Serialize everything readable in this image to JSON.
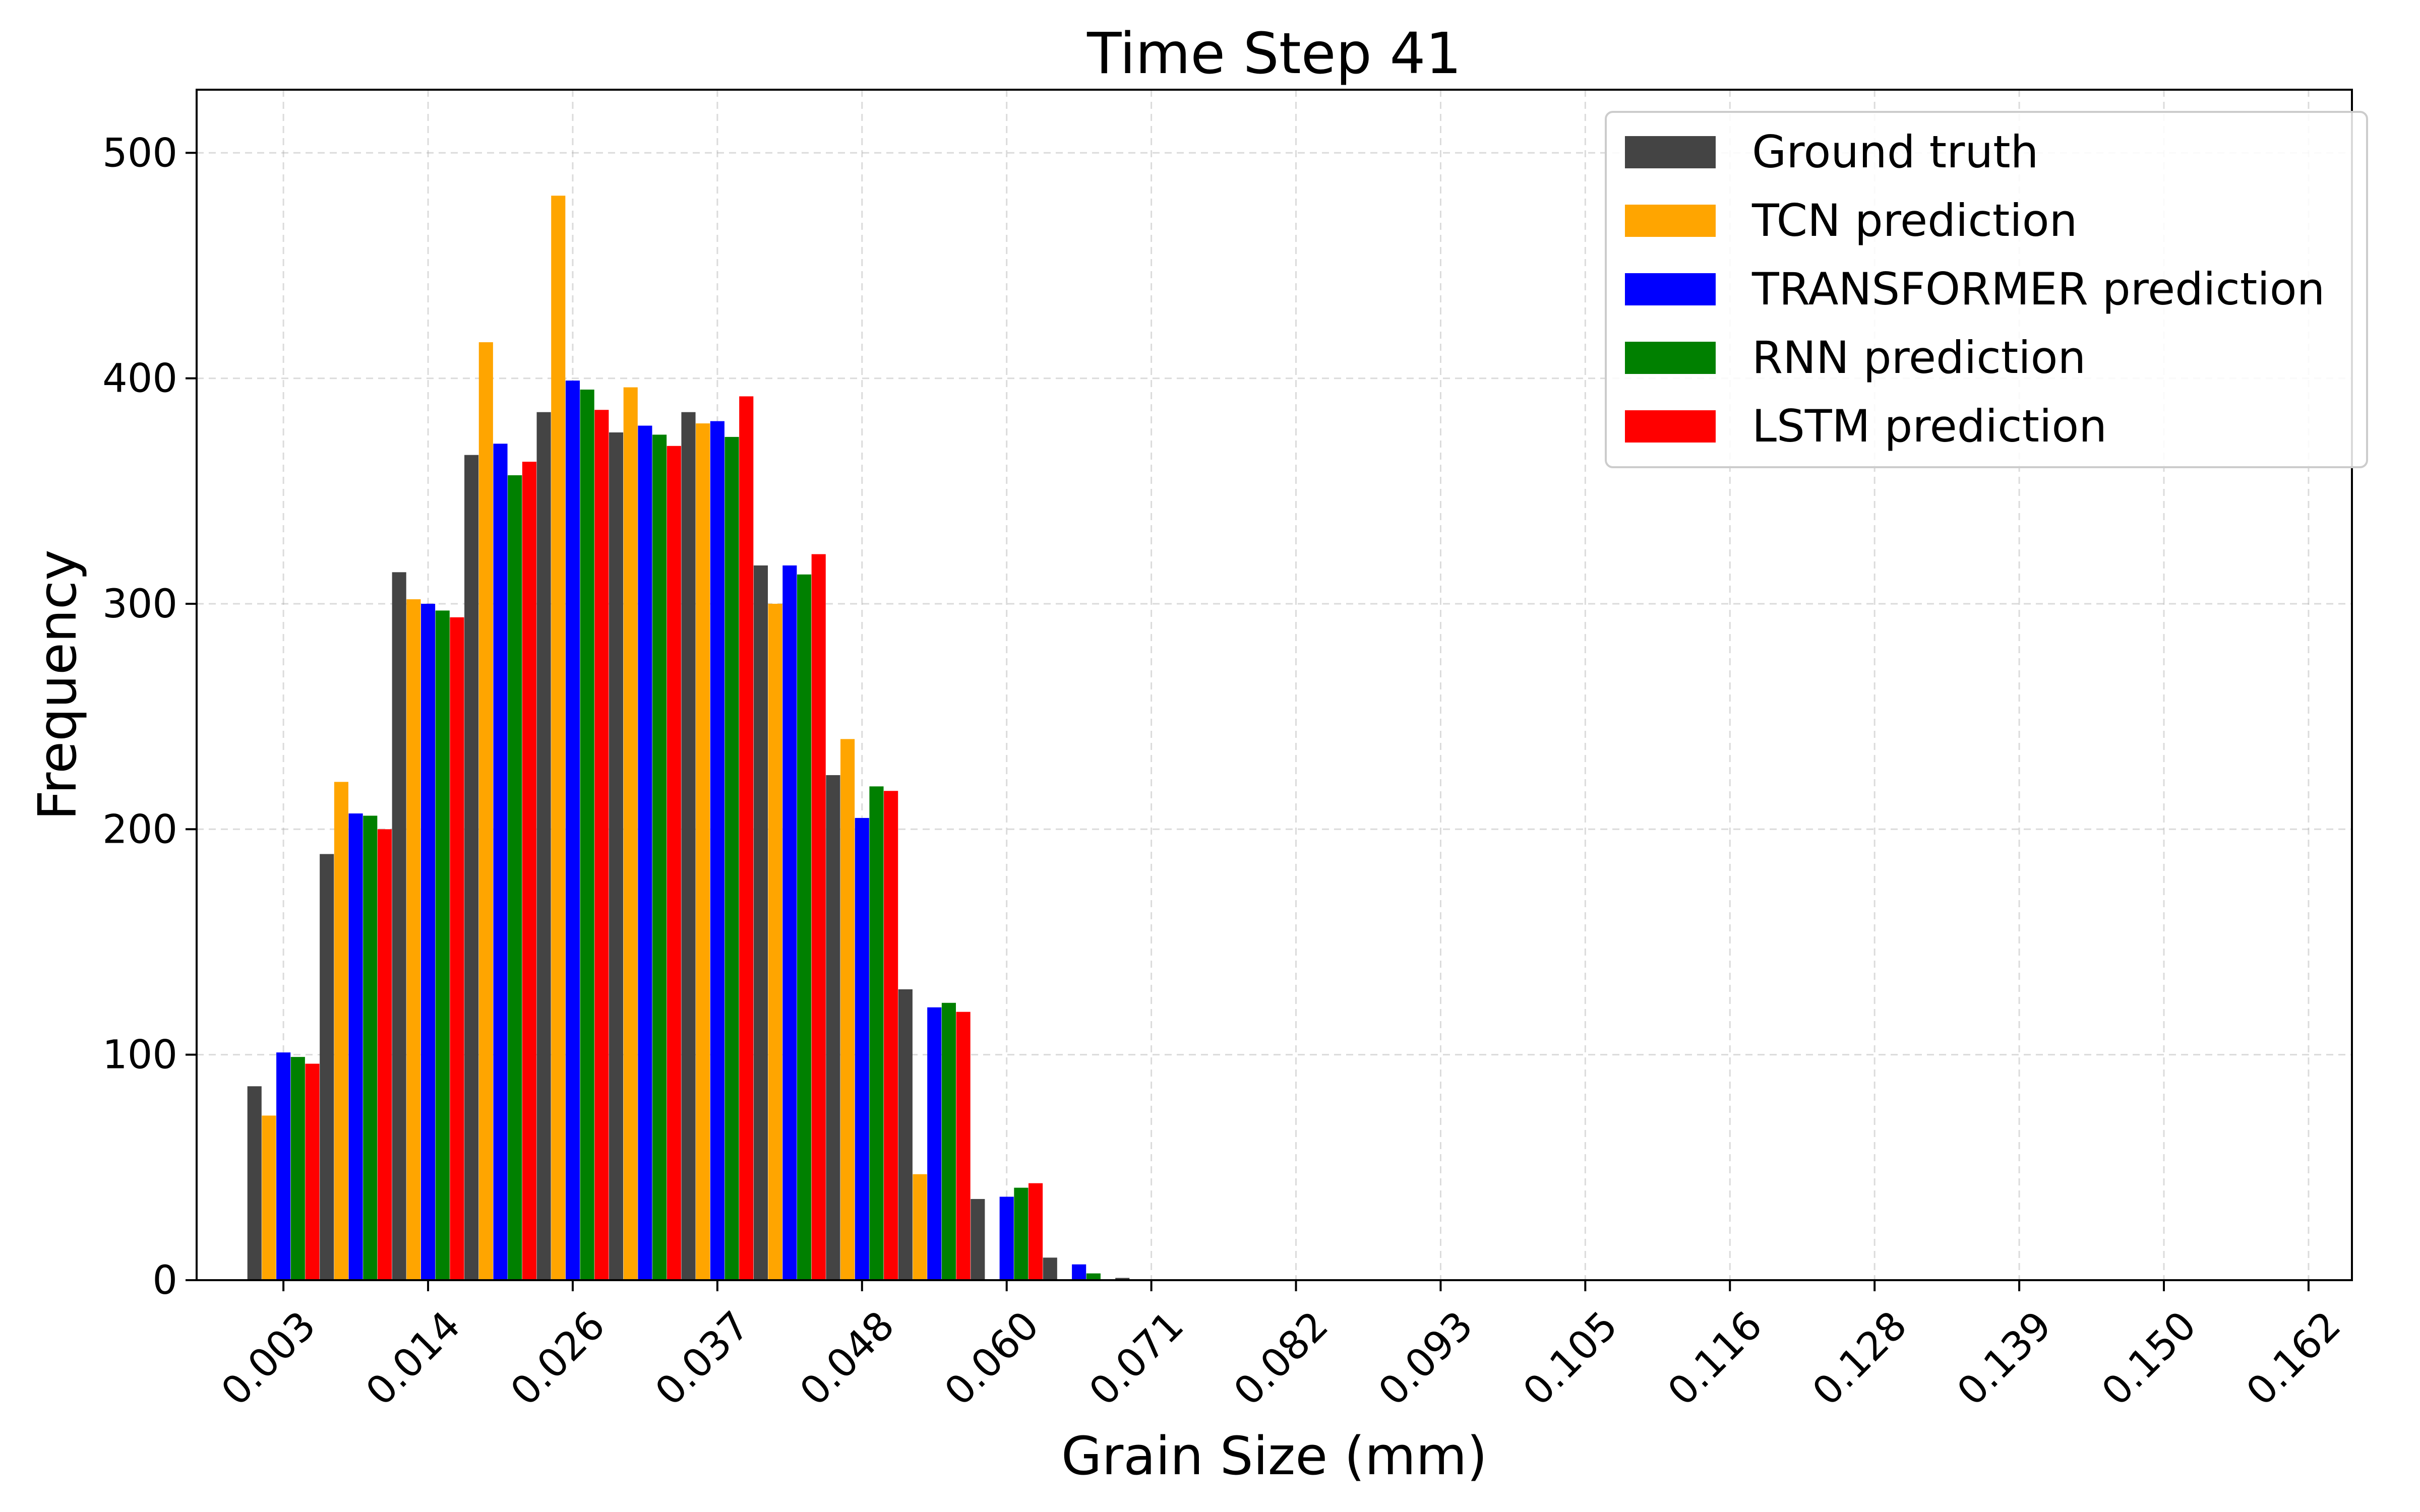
{
  "chart_data": {
    "type": "bar",
    "title": "Time Step 41",
    "xlabel": "Grain Size (mm)",
    "ylabel": "Frequency",
    "ylim": [
      0,
      528
    ],
    "yticks": [
      0,
      100,
      200,
      300,
      400,
      500
    ],
    "xlim": [
      -0.6,
      14.3
    ],
    "xtick_positions": [
      0,
      1,
      2,
      3,
      4,
      5,
      6,
      7,
      8,
      9,
      10,
      11,
      12,
      13,
      14
    ],
    "xtick_labels": [
      "0.003",
      "0.014",
      "0.026",
      "0.037",
      "0.048",
      "0.060",
      "0.071",
      "0.082",
      "0.093",
      "0.105",
      "0.116",
      "0.128",
      "0.139",
      "0.150",
      "0.162"
    ],
    "bin_positions": [
      0,
      0.5,
      1,
      1.5,
      2,
      2.5,
      3,
      3.5,
      4,
      4.5,
      5,
      5.5,
      6,
      6.5
    ],
    "grid": true,
    "legend_position": "top-right",
    "series": [
      {
        "name": "Ground truth",
        "color": "#444444",
        "values": [
          86,
          189,
          314,
          366,
          385,
          376,
          385,
          317,
          224,
          129,
          36,
          10,
          1,
          0
        ]
      },
      {
        "name": "TCN prediction",
        "color": "#ffa500",
        "values": [
          73,
          221,
          302,
          416,
          481,
          396,
          380,
          300,
          240,
          47,
          0,
          0,
          0,
          0
        ]
      },
      {
        "name": "TRANSFORMER prediction",
        "color": "#0000ff",
        "values": [
          101,
          207,
          300,
          371,
          399,
          379,
          381,
          317,
          205,
          121,
          37,
          7,
          0,
          0
        ]
      },
      {
        "name": "RNN prediction",
        "color": "#008000",
        "values": [
          99,
          206,
          297,
          357,
          395,
          375,
          374,
          313,
          219,
          123,
          41,
          3,
          0,
          0
        ]
      },
      {
        "name": "LSTM prediction",
        "color": "#ff0000",
        "values": [
          96,
          200,
          294,
          363,
          386,
          370,
          392,
          322,
          217,
          119,
          43,
          0,
          0,
          0
        ]
      }
    ]
  }
}
